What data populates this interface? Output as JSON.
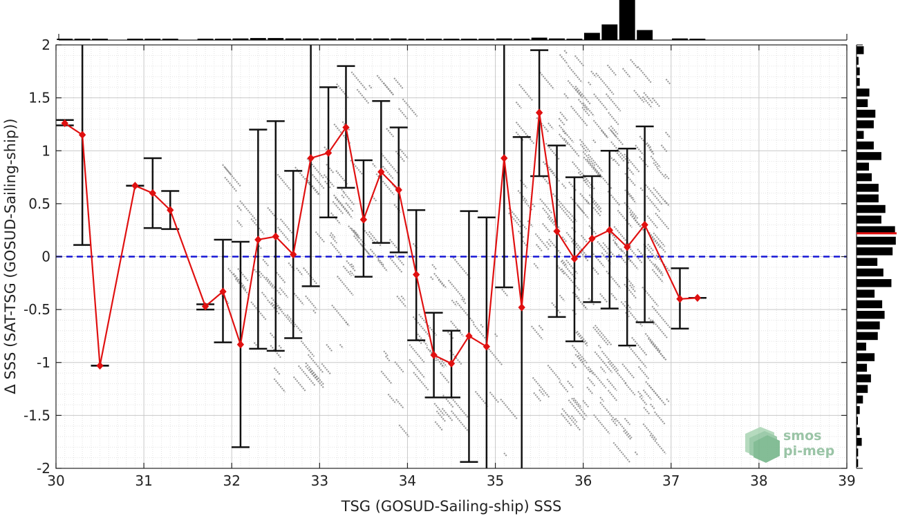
{
  "chart_data": {
    "type": "line",
    "title": "",
    "xlabel": "TSG (GOSUD-Sailing-ship) SSS",
    "ylabel": "Δ SSS (SAT-TSG (GOSUD-Sailing-ship))",
    "xlim": [
      30,
      39
    ],
    "ylim": [
      -2,
      2
    ],
    "x_ticks": [
      30,
      31,
      32,
      33,
      34,
      35,
      36,
      37,
      38,
      39
    ],
    "y_ticks": [
      2,
      1.5,
      1,
      0.5,
      0,
      -0.5,
      -1,
      -1.5,
      -2
    ],
    "x_tick_labels": [
      "30",
      "31",
      "32",
      "33",
      "34",
      "35",
      "36",
      "37",
      "38",
      "39"
    ],
    "y_tick_labels": [
      "2",
      "1.5",
      "1",
      "0.5",
      "0",
      "-0.5",
      "-1",
      "-1.5",
      "-2"
    ],
    "grid": true,
    "reference_line": {
      "y": 0,
      "style": "dashed",
      "color": "#1515d6"
    },
    "series": [
      {
        "type": "line-with-errorbars",
        "color": "#e01010",
        "x": [
          30.1,
          30.3,
          30.5,
          30.9,
          31.1,
          31.3,
          31.7,
          31.9,
          32.1,
          32.3,
          32.5,
          32.7,
          32.9,
          33.1,
          33.3,
          33.5,
          33.7,
          33.9,
          34.1,
          34.3,
          34.5,
          34.7,
          34.9,
          35.1,
          35.3,
          35.5,
          35.7,
          35.9,
          36.1,
          36.3,
          36.5,
          36.7,
          37.1,
          37.3
        ],
        "y": [
          1.26,
          1.15,
          -1.03,
          0.67,
          0.6,
          0.44,
          -0.47,
          -0.33,
          -0.83,
          0.16,
          0.19,
          0.02,
          0.93,
          0.98,
          1.22,
          0.35,
          0.8,
          0.63,
          -0.17,
          -0.93,
          -1.01,
          -0.75,
          -0.85,
          0.93,
          -0.48,
          1.36,
          0.24,
          -0.02,
          0.17,
          0.25,
          0.09,
          0.3,
          -0.4,
          -0.39
        ],
        "err_low": [
          1.24,
          0.11,
          -1.03,
          0.67,
          0.27,
          0.26,
          -0.5,
          -0.81,
          -1.8,
          -0.87,
          -0.89,
          -0.77,
          -0.28,
          0.37,
          0.65,
          -0.19,
          0.13,
          0.04,
          -0.79,
          -1.33,
          -1.33,
          -1.94,
          -2.0,
          -0.29,
          -2.0,
          0.76,
          -0.57,
          -0.8,
          -0.43,
          -0.49,
          -0.84,
          -0.62,
          -0.68,
          -0.39
        ],
        "err_high": [
          1.29,
          2.0,
          -1.03,
          0.67,
          0.93,
          0.62,
          -0.45,
          0.16,
          0.14,
          1.2,
          1.28,
          0.81,
          2.0,
          1.6,
          1.8,
          0.91,
          1.47,
          1.22,
          0.44,
          -0.53,
          -0.7,
          0.43,
          0.37,
          2.0,
          1.13,
          1.95,
          1.05,
          0.75,
          0.76,
          1.0,
          1.02,
          1.23,
          -0.11,
          -0.39
        ]
      }
    ],
    "top_histogram": {
      "bin_centers": [
        30.1,
        30.3,
        30.5,
        30.9,
        31.1,
        31.3,
        31.7,
        31.9,
        32.1,
        32.3,
        32.5,
        32.7,
        32.9,
        33.1,
        33.3,
        33.5,
        33.7,
        33.9,
        34.1,
        34.3,
        34.5,
        34.7,
        34.9,
        35.1,
        35.3,
        35.5,
        35.7,
        35.9,
        36.1,
        36.3,
        36.5,
        36.7,
        37.1,
        37.3
      ],
      "relative_counts": [
        0.03,
        0.03,
        0.03,
        0.03,
        0.03,
        0.03,
        0.03,
        0.03,
        0.04,
        0.05,
        0.05,
        0.04,
        0.04,
        0.04,
        0.04,
        0.04,
        0.04,
        0.04,
        0.03,
        0.03,
        0.03,
        0.03,
        0.03,
        0.04,
        0.03,
        0.06,
        0.04,
        0.03,
        0.18,
        0.39,
        1.0,
        0.25,
        0.04,
        0.03
      ]
    },
    "right_histogram": {
      "bin_centers": [
        1.95,
        1.85,
        1.75,
        1.65,
        1.55,
        1.45,
        1.35,
        1.25,
        1.15,
        1.05,
        0.95,
        0.85,
        0.75,
        0.65,
        0.55,
        0.45,
        0.35,
        0.25,
        0.15,
        0.05,
        -0.05,
        -0.15,
        -0.25,
        -0.35,
        -0.45,
        -0.55,
        -0.65,
        -0.75,
        -0.85,
        -0.95,
        -1.05,
        -1.15,
        -1.25,
        -1.35,
        -1.45,
        -1.55,
        -1.65,
        -1.75,
        -1.85,
        -1.95
      ],
      "relative_counts": [
        0.18,
        0.05,
        0.08,
        0.08,
        0.32,
        0.28,
        0.47,
        0.43,
        0.18,
        0.43,
        0.62,
        0.31,
        0.38,
        0.55,
        0.55,
        0.72,
        0.62,
        0.96,
        0.98,
        0.9,
        0.52,
        0.67,
        0.87,
        0.45,
        0.64,
        0.7,
        0.58,
        0.53,
        0.24,
        0.45,
        0.26,
        0.36,
        0.28,
        0.16,
        0.08,
        0.01,
        0.08,
        0.13,
        0.04,
        0.04
      ],
      "median_marker": {
        "y": 0.22,
        "color": "#e01010"
      }
    },
    "scatter_cloud_color": "#888888"
  },
  "logo": {
    "line1": "smos",
    "line2": "pi-mep"
  }
}
